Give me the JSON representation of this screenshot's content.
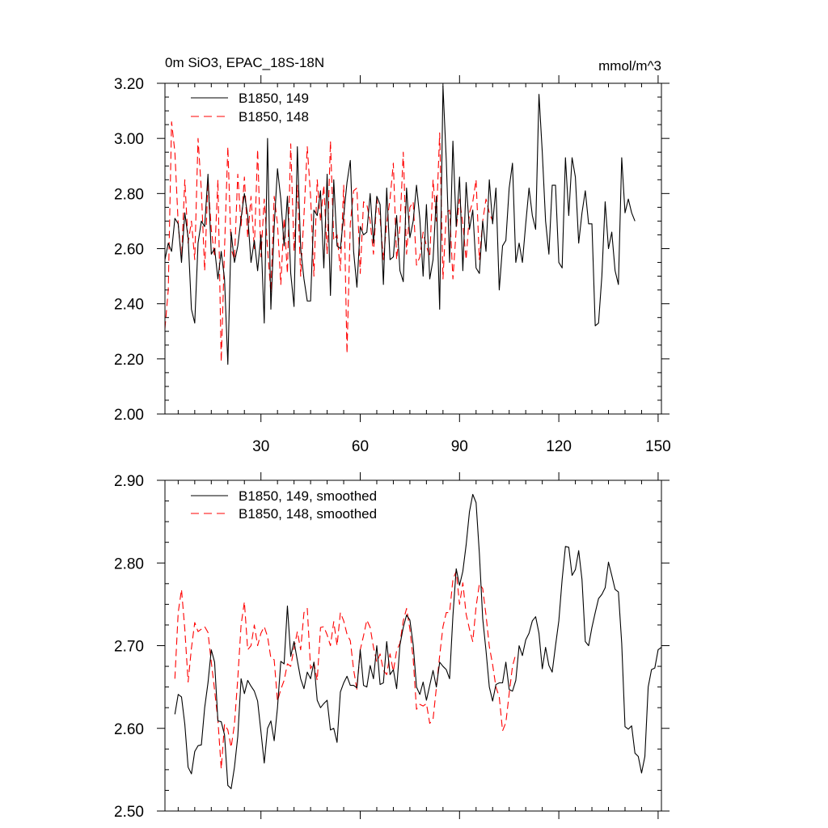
{
  "colors": {
    "series_a": "#000000",
    "series_b": "#ff0000",
    "axis": "#000000",
    "background": "#ffffff"
  },
  "chart_data": [
    {
      "type": "line",
      "title": "0m SiO3, EPAC_18S-18N",
      "units": "mmol/m^3",
      "xlim": [
        1,
        151
      ],
      "ylim": [
        2.0,
        3.2
      ],
      "xticks": [
        30,
        60,
        90,
        120,
        150
      ],
      "xtick_labels": [
        "30",
        "60",
        "90",
        "120",
        "150"
      ],
      "yticks": [
        2.0,
        2.2,
        2.4,
        2.6,
        2.8,
        3.0,
        3.2
      ],
      "ytick_labels": [
        "2.00",
        "2.20",
        "2.40",
        "2.60",
        "2.80",
        "3.00",
        "3.20"
      ],
      "legend_position": "top-left",
      "series": [
        {
          "name": "B1850, 149",
          "style": "solid",
          "color": "#000000",
          "x_start": 1,
          "values": [
            2.56,
            2.62,
            2.59,
            2.71,
            2.69,
            2.55,
            2.73,
            2.64,
            2.38,
            2.33,
            2.62,
            2.7,
            2.68,
            2.87,
            2.58,
            2.6,
            2.49,
            2.59,
            2.49,
            2.18,
            2.66,
            2.55,
            2.61,
            2.71,
            2.8,
            2.72,
            2.55,
            2.63,
            2.52,
            2.65,
            2.33,
            3.0,
            2.38,
            2.68,
            2.89,
            2.78,
            2.61,
            2.79,
            2.51,
            2.39,
            2.97,
            2.6,
            2.49,
            2.41,
            2.41,
            2.74,
            2.72,
            2.81,
            2.53,
            2.87,
            2.43,
            2.85,
            2.61,
            2.6,
            2.72,
            2.84,
            2.92,
            2.59,
            2.46,
            2.68,
            2.65,
            2.66,
            2.8,
            2.62,
            2.79,
            2.76,
            2.47,
            2.82,
            2.56,
            2.57,
            2.72,
            2.52,
            2.48,
            2.82,
            2.64,
            2.7,
            2.83,
            2.71,
            2.5,
            2.76,
            2.49,
            2.56,
            2.79,
            2.38,
            3.19,
            2.92,
            2.55,
            2.99,
            2.68,
            2.86,
            2.52,
            2.84,
            2.67,
            2.74,
            2.53,
            2.51,
            2.7,
            2.59,
            2.85,
            2.69,
            2.82,
            2.45,
            2.61,
            2.63,
            2.82,
            2.91,
            2.55,
            2.62,
            2.55,
            2.69,
            2.82,
            2.72,
            2.67,
            3.16,
            2.95,
            2.7,
            2.58,
            2.83,
            2.83,
            2.55,
            2.53,
            2.93,
            2.72,
            2.93,
            2.86,
            2.62,
            2.73,
            2.81,
            2.69,
            2.69,
            2.32,
            2.33,
            2.5,
            2.77,
            2.6,
            2.66,
            2.52,
            2.47,
            2.93,
            2.73,
            2.78,
            2.73,
            2.7
          ]
        },
        {
          "name": "B1850, 148",
          "style": "dashed",
          "color": "#ff0000",
          "x_start": 1,
          "values": [
            2.31,
            2.45,
            3.06,
            2.95,
            2.69,
            2.56,
            2.85,
            2.62,
            2.7,
            2.56,
            3.0,
            2.81,
            2.52,
            2.85,
            2.67,
            2.57,
            2.85,
            2.19,
            2.6,
            2.97,
            2.6,
            2.56,
            2.87,
            2.68,
            2.86,
            2.64,
            2.79,
            2.6,
            2.96,
            2.57,
            2.78,
            2.6,
            2.44,
            2.79,
            2.69,
            2.47,
            2.71,
            2.51,
            2.98,
            2.59,
            2.83,
            2.5,
            2.72,
            2.97,
            2.79,
            2.5,
            2.85,
            2.7,
            2.83,
            2.58,
            2.99,
            2.63,
            2.65,
            2.52,
            2.83,
            2.22,
            2.69,
            2.81,
            2.82,
            2.51,
            2.77,
            2.76,
            2.7,
            2.58,
            2.78,
            2.71,
            2.56,
            2.69,
            2.78,
            2.91,
            2.56,
            2.68,
            2.95,
            2.58,
            2.75,
            2.77,
            2.54,
            2.57,
            2.66,
            2.61,
            2.57,
            2.85,
            2.7,
            3.02,
            2.49,
            2.73,
            2.74,
            2.49,
            2.67,
            2.78,
            2.69,
            2.56,
            2.73,
            2.77,
            2.85,
            2.56,
            2.7,
            2.78,
            2.73,
            2.7
          ]
        }
      ]
    },
    {
      "type": "line",
      "title": "",
      "units": "",
      "xlim": [
        1,
        151
      ],
      "ylim": [
        2.5,
        2.9
      ],
      "xticks": [
        30,
        60,
        90,
        120,
        150
      ],
      "xtick_labels": [],
      "yticks": [
        2.5,
        2.6,
        2.7,
        2.8,
        2.9
      ],
      "ytick_labels": [
        "2.50",
        "2.60",
        "2.70",
        "2.80",
        "2.90"
      ],
      "legend_position": "top-left",
      "series": [
        {
          "name": "B1850, 149, smoothed",
          "style": "solid",
          "color": "#000000",
          "x_start": 4,
          "values": [
            2.617,
            2.641,
            2.638,
            2.605,
            2.553,
            2.545,
            2.572,
            2.579,
            2.58,
            2.625,
            2.655,
            2.695,
            2.68,
            2.609,
            2.608,
            2.592,
            2.531,
            2.527,
            2.553,
            2.59,
            2.66,
            2.642,
            2.658,
            2.651,
            2.645,
            2.633,
            2.596,
            2.558,
            2.6,
            2.609,
            2.585,
            2.625,
            2.681,
            2.678,
            2.748,
            2.687,
            2.705,
            2.682,
            2.66,
            2.648,
            2.668,
            2.66,
            2.68,
            2.634,
            2.625,
            2.63,
            2.634,
            2.598,
            2.6,
            2.583,
            2.644,
            2.655,
            2.663,
            2.652,
            2.652,
            2.649,
            2.695,
            2.652,
            2.65,
            2.676,
            2.66,
            2.7,
            2.653,
            2.655,
            2.705,
            2.665,
            2.671,
            2.648,
            2.701,
            2.722,
            2.737,
            2.731,
            2.701,
            2.65,
            2.641,
            2.656,
            2.634,
            2.652,
            2.67,
            2.65,
            2.68,
            2.675,
            2.671,
            2.66,
            2.736,
            2.793,
            2.773,
            2.79,
            2.822,
            2.862,
            2.883,
            2.873,
            2.811,
            2.733,
            2.694,
            2.65,
            2.633,
            2.653,
            2.655,
            2.655,
            2.68,
            2.647,
            2.645,
            2.658,
            2.7,
            2.688,
            2.707,
            2.715,
            2.73,
            2.735,
            2.715,
            2.672,
            2.698,
            2.676,
            2.668,
            2.7,
            2.73,
            2.78,
            2.82,
            2.819,
            2.785,
            2.792,
            2.815,
            2.78,
            2.705,
            2.7,
            2.722,
            2.74,
            2.757,
            2.762,
            2.77,
            2.801,
            2.785,
            2.768,
            2.765,
            2.703,
            2.602,
            2.599,
            2.603,
            2.57,
            2.566,
            2.546,
            2.566,
            2.65,
            2.671,
            2.673,
            2.695,
            2.698
          ]
        },
        {
          "name": "B1850, 148, smoothed",
          "style": "dashed",
          "color": "#ff0000",
          "x_start": 4,
          "values": [
            2.66,
            2.74,
            2.768,
            2.72,
            2.656,
            2.697,
            2.728,
            2.717,
            2.72,
            2.723,
            2.716,
            2.68,
            2.646,
            2.61,
            2.551,
            2.605,
            2.598,
            2.577,
            2.605,
            2.66,
            2.725,
            2.753,
            2.695,
            2.7,
            2.725,
            2.7,
            2.715,
            2.723,
            2.711,
            2.685,
            2.683,
            2.633,
            2.647,
            2.658,
            2.678,
            2.675,
            2.697,
            2.717,
            2.695,
            2.74,
            2.745,
            2.672,
            2.68,
            2.658,
            2.722,
            2.723,
            2.713,
            2.7,
            2.729,
            2.7,
            2.74,
            2.73,
            2.714,
            2.706,
            2.671,
            2.647,
            2.695,
            2.712,
            2.731,
            2.722,
            2.698,
            2.68,
            2.69,
            2.67,
            2.665,
            2.69,
            2.669,
            2.694,
            2.703,
            2.73,
            2.745,
            2.72,
            2.684,
            2.623,
            2.629,
            2.627,
            2.63,
            2.606,
            2.611,
            2.649,
            2.688,
            2.723,
            2.74,
            2.74,
            2.78,
            2.79,
            2.75,
            2.776,
            2.738,
            2.72,
            2.705,
            2.747,
            2.775,
            2.769,
            2.737,
            2.699,
            2.677,
            2.65,
            2.638,
            2.597,
            2.607,
            2.642,
            2.675,
            2.69
          ]
        }
      ]
    }
  ]
}
